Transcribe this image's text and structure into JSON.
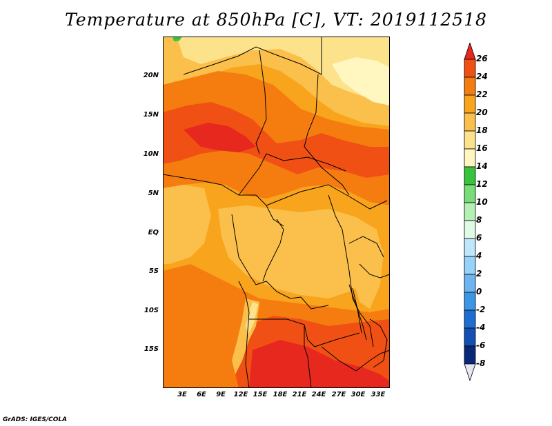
{
  "title": "Temperature at 850hPa [C], VT: 2019112518",
  "credit": "GrADS: IGES/COLA",
  "lat_ticks": [
    "20N",
    "15N",
    "10N",
    "5N",
    "EQ",
    "5S",
    "10S",
    "15S"
  ],
  "lon_ticks": [
    "3E",
    "6E",
    "9E",
    "12E",
    "15E",
    "18E",
    "21E",
    "24E",
    "27E",
    "30E",
    "33E"
  ],
  "colorbar": {
    "labels": [
      "26",
      "24",
      "22",
      "20",
      "18",
      "16",
      "14",
      "12",
      "10",
      "8",
      "6",
      "4",
      "2",
      "0",
      "-2",
      "-4",
      "-6",
      "-8"
    ],
    "colors": [
      "#e6281e",
      "#f05014",
      "#f57d10",
      "#f9a41d",
      "#fbc04c",
      "#fde28c",
      "#fff6c0",
      "#37c43c",
      "#78dc78",
      "#b4f0b4",
      "#e1fae6",
      "#c0e6fa",
      "#96d2fa",
      "#6eb4f0",
      "#3c96e6",
      "#1e6ed2",
      "#1450b4",
      "#0a2878",
      "#e6e6f5"
    ]
  },
  "map_colors": {
    "c24": "#e6281e",
    "c22": "#f05014",
    "c20": "#f57d10",
    "c18": "#f9a41d",
    "c16": "#fbc04c",
    "c14": "#fde28c",
    "c12": "#fff6c0",
    "green": "#37c43c"
  }
}
